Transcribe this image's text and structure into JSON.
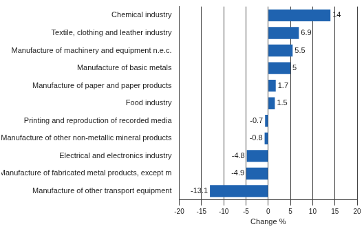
{
  "chart_data": {
    "type": "bar",
    "orientation": "horizontal",
    "categories": [
      "Chemical industry",
      "Textile, clothing and leather industry",
      "Manufacture of machinery and equipment n.e.c.",
      "Manufacture of basic metals",
      "Manufacture of paper and paper products",
      "Food industry",
      "Printing and reproduction of recorded media",
      "Manufacture of other non-metallic mineral products",
      "Electrical and electronics industry",
      "Manufacture of fabricated metal products, except m",
      "Manufacture of other transport equipment"
    ],
    "values": [
      14,
      6.9,
      5.5,
      5,
      1.7,
      1.5,
      -0.7,
      -0.8,
      -4.8,
      -4.9,
      -13.1
    ],
    "color": "#1f63b0",
    "x_label": "Change %",
    "xlim": [
      -20,
      20
    ],
    "xticks": [
      -20,
      -15,
      -10,
      -5,
      0,
      5,
      10,
      15,
      20
    ],
    "grid": true,
    "data_labels": true
  }
}
